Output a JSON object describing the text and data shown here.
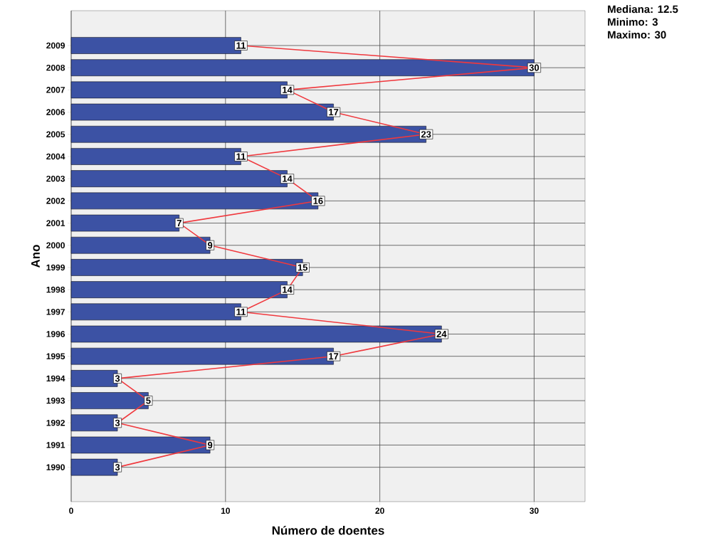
{
  "chart_data": {
    "type": "bar",
    "orientation": "horizontal",
    "xlabel": "Número de doentes",
    "ylabel": "Ano",
    "categories": [
      "2009",
      "2008",
      "2007",
      "2006",
      "2005",
      "2004",
      "2003",
      "2002",
      "2001",
      "2000",
      "1999",
      "1998",
      "1997",
      "1996",
      "1995",
      "1994",
      "1993",
      "1992",
      "1991",
      "1990"
    ],
    "series": [
      {
        "color": "#3c52a4",
        "values": [
          11,
          30,
          14,
          17,
          23,
          11,
          14,
          16,
          7,
          9,
          15,
          14,
          11,
          24,
          17,
          3,
          5,
          3,
          9,
          3
        ]
      },
      {
        "type": "line",
        "marker": "square",
        "color": "#f0393e",
        "values": [
          11,
          30,
          14,
          17,
          23,
          11,
          14,
          16,
          7,
          9,
          15,
          14,
          11,
          24,
          17,
          3,
          5,
          3,
          9,
          3
        ],
        "value_labels": [
          "11",
          "30",
          "14",
          "17",
          "23",
          "11",
          "14",
          "16",
          "7",
          "9",
          "15",
          "14",
          "11",
          "24",
          "17",
          "3",
          "5",
          "3",
          "9",
          "3"
        ]
      }
    ],
    "xlim": [
      0,
      33.3
    ],
    "xticks": [
      0,
      10,
      20,
      30
    ],
    "grid": true,
    "annotations": [
      "Mediana: 12.5",
      "Minimo: 3",
      "Maximo: 30"
    ]
  }
}
